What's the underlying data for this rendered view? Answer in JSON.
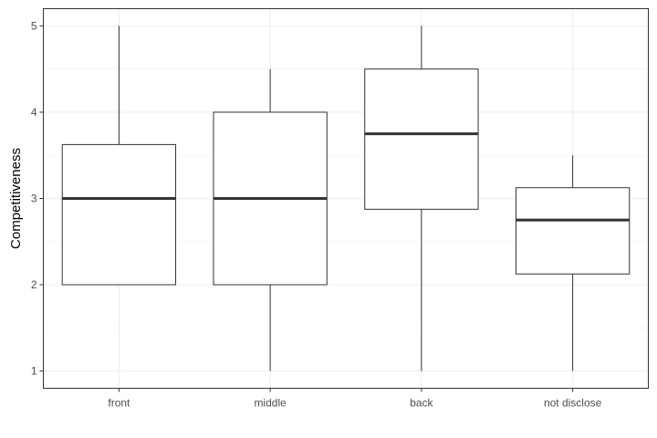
{
  "chart_data": {
    "type": "box",
    "ylabel": "Competitiveness",
    "xlabel": "",
    "ylim": [
      0.8,
      5.2
    ],
    "yticks": [
      1,
      2,
      3,
      4,
      5
    ],
    "grid": true,
    "categories": [
      "front",
      "middle",
      "back",
      "not disclose"
    ],
    "boxes": [
      {
        "category": "front",
        "min": 2,
        "q1": 2,
        "median": 3,
        "q3": 3.625,
        "max": 5
      },
      {
        "category": "middle",
        "min": 1,
        "q1": 2,
        "median": 3,
        "q3": 4,
        "max": 4.5
      },
      {
        "category": "back",
        "min": 1,
        "q1": 2.875,
        "median": 3.75,
        "q3": 4.5,
        "max": 5
      },
      {
        "category": "not disclose",
        "min": 1,
        "q1": 2.125,
        "median": 2.75,
        "q3": 3.125,
        "max": 3.5
      }
    ]
  }
}
